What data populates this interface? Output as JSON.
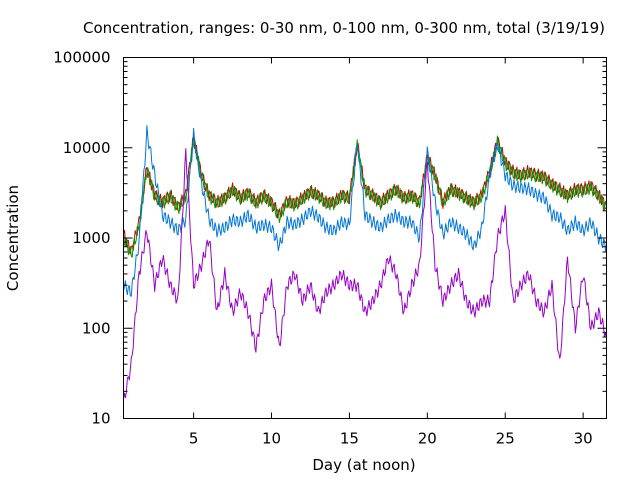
{
  "chart_data": {
    "type": "line",
    "title": "Concentration, ranges: 0-30 nm, 0-100 nm, 0-300 nm, total (3/19/19)",
    "xlabel": "Day (at noon)",
    "ylabel": "Concentration",
    "xlim": [
      0.5,
      31.5
    ],
    "ylim": [
      10,
      100000
    ],
    "yscale": "log",
    "grid": false,
    "legend": "none",
    "x_ticks": [
      5,
      10,
      15,
      20,
      25,
      30
    ],
    "x_tick_labels": [
      "5",
      "10",
      "15",
      "20",
      "25",
      "30"
    ],
    "y_ticks": [
      10,
      100,
      1000,
      10000,
      100000
    ],
    "y_tick_labels": [
      "10",
      "100",
      "1000",
      "10000",
      "100000"
    ],
    "x": [
      0.5,
      1.0,
      1.5,
      2.0,
      2.5,
      3.0,
      3.5,
      4.0,
      4.5,
      5.0,
      5.5,
      6.0,
      6.5,
      7.0,
      7.5,
      8.0,
      8.5,
      9.0,
      9.5,
      10.0,
      10.5,
      11.0,
      11.5,
      12.0,
      12.5,
      13.0,
      13.5,
      14.0,
      14.5,
      15.0,
      15.5,
      16.0,
      16.5,
      17.0,
      17.5,
      18.0,
      18.5,
      19.0,
      19.5,
      20.0,
      20.5,
      21.0,
      21.5,
      22.0,
      22.5,
      23.0,
      23.5,
      24.0,
      24.5,
      25.0,
      25.5,
      26.0,
      26.5,
      27.0,
      27.5,
      28.0,
      28.5,
      29.0,
      29.5,
      30.0,
      30.5,
      31.0,
      31.5
    ],
    "series": [
      {
        "color": "#cc0000",
        "values": [
          1100,
          700,
          1500,
          6000,
          3000,
          2500,
          3000,
          2200,
          3000,
          13000,
          5000,
          3000,
          2500,
          2800,
          3500,
          2800,
          3200,
          2500,
          3000,
          2500,
          1800,
          2600,
          2400,
          2800,
          3300,
          3000,
          2500,
          2500,
          3000,
          2800,
          11000,
          3500,
          3000,
          2500,
          3000,
          3500,
          2800,
          3000,
          2500,
          8000,
          5000,
          2500,
          3500,
          3200,
          2800,
          2500,
          3000,
          5500,
          12000,
          7000,
          5500,
          5000,
          5500,
          5000,
          4800,
          4000,
          3500,
          3000,
          3500,
          3500,
          3800,
          3000,
          2200
        ]
      },
      {
        "color": "#009900",
        "values": [
          1000,
          650,
          1400,
          5800,
          2900,
          2400,
          2900,
          2100,
          2900,
          12500,
          4800,
          2900,
          2400,
          2700,
          3400,
          2700,
          3100,
          2400,
          2900,
          2400,
          1700,
          2500,
          2300,
          2700,
          3200,
          2900,
          2400,
          2400,
          2900,
          2700,
          10500,
          3400,
          2900,
          2400,
          2900,
          3400,
          2700,
          2900,
          2400,
          7500,
          4800,
          2400,
          3400,
          3100,
          2700,
          2400,
          2900,
          5200,
          11500,
          6700,
          5200,
          4800,
          5200,
          4800,
          4600,
          3800,
          3300,
          2900,
          3300,
          3300,
          3600,
          2900,
          2100
        ]
      },
      {
        "color": "#0077dd",
        "values": [
          300,
          250,
          900,
          15000,
          5000,
          1800,
          1500,
          1200,
          1600,
          14000,
          4000,
          1600,
          1200,
          1300,
          1600,
          1500,
          1800,
          1300,
          1400,
          1300,
          800,
          1500,
          1400,
          1600,
          2000,
          1700,
          1300,
          1200,
          1500,
          1400,
          12000,
          1800,
          1500,
          1300,
          1600,
          1800,
          1500,
          1500,
          1000,
          9000,
          2500,
          1100,
          1500,
          1300,
          1100,
          800,
          1300,
          5000,
          11000,
          5000,
          3800,
          3600,
          3500,
          3000,
          2800,
          1800,
          1700,
          1200,
          1500,
          1200,
          1500,
          1000,
          800
        ]
      },
      {
        "color": "#9900cc",
        "values": [
          15,
          40,
          400,
          1200,
          300,
          600,
          300,
          200,
          9000,
          300,
          500,
          1000,
          150,
          400,
          150,
          250,
          150,
          60,
          200,
          300,
          60,
          300,
          400,
          200,
          300,
          150,
          250,
          300,
          400,
          300,
          300,
          150,
          200,
          300,
          600,
          400,
          150,
          300,
          500,
          7000,
          500,
          200,
          300,
          400,
          200,
          150,
          200,
          200,
          1000,
          2000,
          200,
          300,
          400,
          200,
          150,
          300,
          40,
          600,
          100,
          400,
          100,
          150,
          80
        ]
      }
    ]
  }
}
